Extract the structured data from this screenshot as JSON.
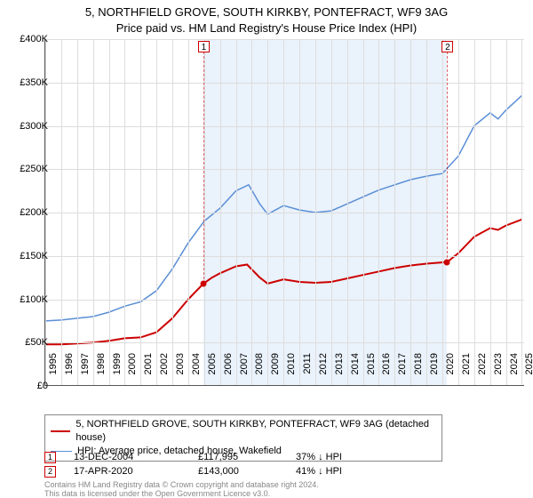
{
  "chart": {
    "type": "line",
    "title_line1": "5, NORTHFIELD GROVE, SOUTH KIRKBY, PONTEFRACT, WF9 3AG",
    "title_line2": "Price paid vs. HM Land Registry's House Price Index (HPI)",
    "title_fontsize": 13,
    "background_color": "#ffffff",
    "shaded_band_color": "#eaf2fb",
    "shaded_band_x_start": 2004.95,
    "shaded_band_x_end": 2020.3,
    "grid_color": "#dddddd",
    "xlim": [
      1995,
      2025.2
    ],
    "ylim": [
      0,
      400000
    ],
    "y_ticks": [
      0,
      50000,
      100000,
      150000,
      200000,
      250000,
      300000,
      350000,
      400000
    ],
    "y_tick_labels": [
      "£0",
      "£50K",
      "£100K",
      "£150K",
      "£200K",
      "£250K",
      "£300K",
      "£350K",
      "£400K"
    ],
    "x_ticks": [
      1995,
      1996,
      1997,
      1998,
      1999,
      2000,
      2001,
      2002,
      2003,
      2004,
      2005,
      2006,
      2007,
      2008,
      2009,
      2010,
      2011,
      2012,
      2013,
      2014,
      2015,
      2016,
      2017,
      2018,
      2019,
      2020,
      2021,
      2022,
      2023,
      2024,
      2025
    ],
    "label_fontsize": 11,
    "series": {
      "property": {
        "label": "5, NORTHFIELD GROVE, SOUTH KIRKBY, PONTEFRACT, WF9 3AG (detached house)",
        "color": "#cc0000",
        "line_width": 2,
        "points": [
          [
            1995,
            48000
          ],
          [
            1996,
            48000
          ],
          [
            1997,
            49000
          ],
          [
            1998,
            50000
          ],
          [
            1999,
            52000
          ],
          [
            2000,
            55000
          ],
          [
            2001,
            56000
          ],
          [
            2002,
            62000
          ],
          [
            2003,
            78000
          ],
          [
            2004,
            100000
          ],
          [
            2004.95,
            117995
          ],
          [
            2005.5,
            125000
          ],
          [
            2006,
            130000
          ],
          [
            2007,
            138000
          ],
          [
            2007.7,
            140000
          ],
          [
            2008.5,
            125000
          ],
          [
            2009,
            118000
          ],
          [
            2010,
            123000
          ],
          [
            2011,
            120000
          ],
          [
            2012,
            119000
          ],
          [
            2013,
            120000
          ],
          [
            2014,
            124000
          ],
          [
            2015,
            128000
          ],
          [
            2016,
            132000
          ],
          [
            2017,
            136000
          ],
          [
            2018,
            139000
          ],
          [
            2019,
            141000
          ],
          [
            2020.3,
            143000
          ],
          [
            2021,
            153000
          ],
          [
            2022,
            172000
          ],
          [
            2023,
            182000
          ],
          [
            2023.5,
            180000
          ],
          [
            2024,
            185000
          ],
          [
            2025,
            192000
          ]
        ]
      },
      "hpi": {
        "label": "HPI: Average price, detached house, Wakefield",
        "color": "#5b8fd6",
        "line_width": 1.5,
        "points": [
          [
            1995,
            75000
          ],
          [
            1996,
            76000
          ],
          [
            1997,
            78000
          ],
          [
            1998,
            80000
          ],
          [
            1999,
            85000
          ],
          [
            2000,
            92000
          ],
          [
            2001,
            97000
          ],
          [
            2002,
            110000
          ],
          [
            2003,
            135000
          ],
          [
            2004,
            165000
          ],
          [
            2005,
            190000
          ],
          [
            2006,
            205000
          ],
          [
            2007,
            225000
          ],
          [
            2007.8,
            232000
          ],
          [
            2008.5,
            210000
          ],
          [
            2009,
            198000
          ],
          [
            2010,
            208000
          ],
          [
            2011,
            203000
          ],
          [
            2012,
            200000
          ],
          [
            2013,
            202000
          ],
          [
            2014,
            210000
          ],
          [
            2015,
            218000
          ],
          [
            2016,
            226000
          ],
          [
            2017,
            232000
          ],
          [
            2018,
            238000
          ],
          [
            2019,
            242000
          ],
          [
            2020,
            245000
          ],
          [
            2021,
            265000
          ],
          [
            2022,
            300000
          ],
          [
            2023,
            315000
          ],
          [
            2023.5,
            308000
          ],
          [
            2024,
            318000
          ],
          [
            2025,
            335000
          ]
        ]
      }
    },
    "markers": [
      {
        "n": "1",
        "x": 2004.95,
        "y": 117995,
        "dot_color": "#cc0000"
      },
      {
        "n": "2",
        "x": 2020.3,
        "y": 143000,
        "dot_color": "#cc0000"
      }
    ]
  },
  "legend": {
    "items": [
      {
        "color": "#cc0000",
        "width": 2,
        "text_key": "chart.series.property.label"
      },
      {
        "color": "#5b8fd6",
        "width": 1.5,
        "text_key": "chart.series.hpi.label"
      }
    ]
  },
  "transactions": [
    {
      "n": "1",
      "date": "13-DEC-2004",
      "price": "£117,995",
      "pct": "37% ↓ HPI"
    },
    {
      "n": "2",
      "date": "17-APR-2020",
      "price": "£143,000",
      "pct": "41% ↓ HPI"
    }
  ],
  "footer": {
    "line1": "Contains HM Land Registry data © Crown copyright and database right 2024.",
    "line2": "This data is licensed under the Open Government Licence v3.0."
  }
}
